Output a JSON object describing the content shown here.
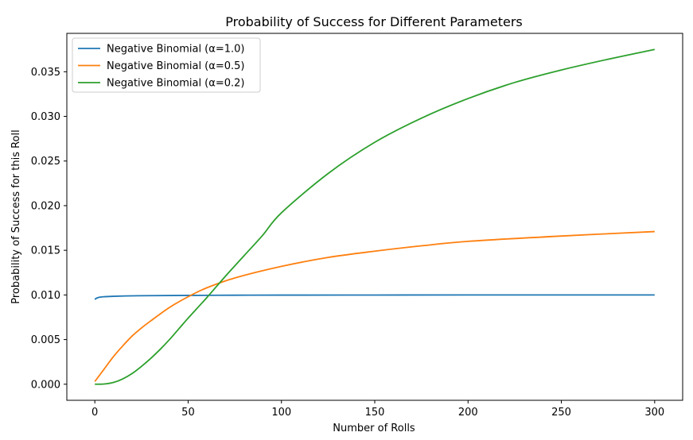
{
  "chart_data": {
    "type": "line",
    "title": "Probability of Success for Different Parameters",
    "xlabel": "Number of Rolls",
    "ylabel": "Probability of Success for this Roll",
    "xlim": [
      -15,
      315
    ],
    "ylim": [
      -0.0018,
      0.0393
    ],
    "xticks": [
      0,
      50,
      100,
      150,
      200,
      250,
      300
    ],
    "xtick_labels": [
      "0",
      "50",
      "100",
      "150",
      "200",
      "250",
      "300"
    ],
    "yticks": [
      0.0,
      0.005,
      0.01,
      0.015,
      0.02,
      0.025,
      0.03,
      0.035
    ],
    "ytick_labels": [
      "0.000",
      "0.005",
      "0.010",
      "0.015",
      "0.020",
      "0.025",
      "0.030",
      "0.035"
    ],
    "grid": false,
    "legend_position": "top-left",
    "series": [
      {
        "name": "Negative Binomial (α=1.0)",
        "color": "#1f77b4",
        "x": [
          0,
          1,
          2,
          3,
          5,
          10,
          20,
          30,
          50,
          75,
          100,
          150,
          200,
          250,
          300
        ],
        "y": [
          0.0095,
          0.00965,
          0.00972,
          0.00976,
          0.0098,
          0.00985,
          0.0099,
          0.00992,
          0.00995,
          0.00997,
          0.00998,
          0.00999,
          0.01,
          0.01,
          0.01
        ]
      },
      {
        "name": "Negative Binomial (α=0.5)",
        "color": "#ff7f0e",
        "x": [
          0,
          5,
          10,
          15,
          20,
          25,
          30,
          40,
          50,
          60,
          75,
          100,
          125,
          150,
          175,
          200,
          250,
          300
        ],
        "y": [
          0.0003,
          0.0017,
          0.0031,
          0.0043,
          0.0054,
          0.0063,
          0.0071,
          0.0086,
          0.0098,
          0.0108,
          0.0119,
          0.0132,
          0.0142,
          0.0149,
          0.0155,
          0.016,
          0.0166,
          0.0171
        ]
      },
      {
        "name": "Negative Binomial (α=0.2)",
        "color": "#2ca02c",
        "x": [
          0,
          5,
          10,
          15,
          20,
          25,
          30,
          35,
          40,
          45,
          50,
          60,
          70,
          80,
          90,
          100,
          125,
          150,
          175,
          200,
          225,
          250,
          275,
          300
        ],
        "y": [
          0.0,
          2e-05,
          0.0002,
          0.0006,
          0.0012,
          0.002,
          0.0029,
          0.0039,
          0.005,
          0.0062,
          0.0074,
          0.0097,
          0.0121,
          0.0144,
          0.0167,
          0.0192,
          0.0236,
          0.0271,
          0.0298,
          0.032,
          0.0338,
          0.0352,
          0.0364,
          0.0375
        ]
      }
    ]
  }
}
